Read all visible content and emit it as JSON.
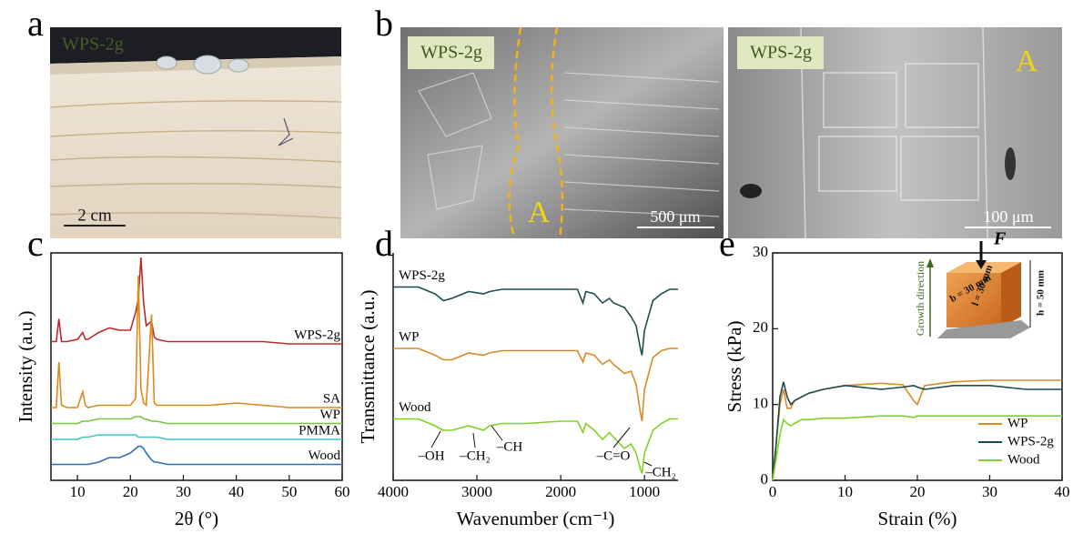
{
  "panel_labels": [
    "a",
    "b",
    "c",
    "d",
    "e"
  ],
  "photos": [
    {
      "label": "WPS-2g",
      "scale_bar": "2 cm"
    },
    {
      "label": "WPS-2g",
      "region": "A",
      "scale_bar": "500 μm"
    },
    {
      "label": "WPS-2g",
      "region": "A",
      "scale_bar": "100 μm"
    }
  ],
  "chart_data": [
    {
      "type": "line",
      "xlabel": "2θ (°)",
      "ylabel": "Intensity (a.u.)",
      "xlim": [
        5,
        60
      ],
      "xticks": [
        10,
        20,
        30,
        40,
        50,
        60
      ],
      "ylim": [
        0,
        100
      ],
      "x": [
        5,
        6,
        6.5,
        7,
        8,
        10,
        11,
        11.5,
        12,
        14,
        16,
        18,
        20,
        21,
        21.5,
        22,
        22.5,
        23,
        24,
        24.5,
        25,
        27,
        30,
        35,
        40,
        45,
        50,
        55,
        60
      ],
      "series": [
        {
          "name": "WPS-2g",
          "color": "#c0282e",
          "values": [
            61,
            61,
            71,
            61,
            61,
            62,
            65,
            62,
            62,
            65,
            67,
            66,
            66,
            74,
            80,
            98,
            78,
            68,
            70,
            63,
            62,
            61,
            61,
            61,
            61,
            61,
            60,
            60,
            60
          ]
        },
        {
          "name": "SA",
          "color": "#d98a1a",
          "values": [
            32,
            32,
            52,
            33,
            32,
            32,
            39,
            33,
            32,
            33,
            33,
            33,
            33,
            36,
            90,
            40,
            34,
            33,
            73,
            34,
            33,
            33,
            33,
            33,
            34,
            33,
            32,
            32,
            32
          ]
        },
        {
          "name": "WP",
          "color": "#7cc242",
          "values": [
            25,
            25,
            25,
            25,
            25,
            25,
            26,
            26,
            26,
            27,
            27,
            27,
            27,
            28,
            28,
            28,
            27,
            27,
            26,
            26,
            26,
            25,
            25,
            25,
            25,
            25,
            25,
            25,
            25
          ]
        },
        {
          "name": "PMMA",
          "color": "#3cc6c0",
          "values": [
            18,
            18,
            18,
            18,
            18,
            18,
            19,
            19,
            19,
            20,
            20,
            20,
            20,
            20,
            19,
            19,
            19,
            19,
            19,
            19,
            19,
            18,
            18,
            18,
            18,
            18,
            18,
            18,
            18
          ]
        },
        {
          "name": "Wood",
          "color": "#2a6db5",
          "values": [
            7,
            7,
            7,
            7,
            7,
            7,
            7,
            7,
            7,
            8,
            10,
            10,
            12,
            14,
            15,
            15,
            14,
            12,
            9,
            8,
            8,
            7,
            7,
            7,
            7,
            7,
            7,
            7,
            7
          ]
        }
      ]
    },
    {
      "type": "line",
      "xlabel": "Wavenumber (cm⁻¹)",
      "ylabel": "Transmittance (a.u.)",
      "xlim": [
        4000,
        600
      ],
      "xticks": [
        4000,
        3000,
        2000,
        1000
      ],
      "ylim": [
        0,
        100
      ],
      "x": [
        4000,
        3700,
        3500,
        3400,
        3300,
        3100,
        2920,
        2850,
        2700,
        2400,
        2000,
        1800,
        1735,
        1700,
        1600,
        1500,
        1420,
        1370,
        1240,
        1160,
        1100,
        1050,
        1030,
        1000,
        900,
        800,
        700,
        600
      ],
      "series": [
        {
          "name": "WPS-2g",
          "color": "#1e4d4f",
          "values": [
            85,
            85,
            82,
            79,
            80,
            83,
            82,
            83,
            84,
            84,
            84,
            84,
            78,
            83,
            82,
            78,
            80,
            78,
            76,
            72,
            68,
            58,
            55,
            66,
            79,
            82,
            84,
            84
          ]
        },
        {
          "name": "WP",
          "color": "#d98a26",
          "values": [
            58,
            58,
            55,
            53,
            53,
            56,
            55,
            56,
            57,
            57,
            57,
            57,
            52,
            56,
            55,
            51,
            53,
            51,
            47,
            48,
            42,
            30,
            26,
            40,
            54,
            57,
            58,
            58
          ]
        },
        {
          "name": "Wood",
          "color": "#7ed321",
          "values": [
            27,
            27,
            24,
            22,
            22,
            24,
            22,
            24,
            25,
            25,
            26,
            26,
            21,
            25,
            22,
            18,
            21,
            19,
            14,
            16,
            12,
            5,
            3,
            12,
            22,
            25,
            27,
            27
          ]
        }
      ],
      "annotations": [
        "–OH",
        "–CH₂",
        "–CH",
        "–C=O",
        "–CH₂"
      ]
    },
    {
      "type": "line",
      "xlabel": "Strain (%)",
      "ylabel": "Stress (kPa)",
      "xlim": [
        0,
        40
      ],
      "xticks": [
        0,
        10,
        20,
        30,
        40
      ],
      "ylim": [
        0,
        30
      ],
      "yticks": [
        0,
        10,
        20,
        30
      ],
      "legend": "lower right",
      "x": [
        0,
        0.5,
        1,
        1.5,
        2,
        2.5,
        3,
        4,
        5,
        7,
        10,
        15,
        18,
        19.5,
        20,
        21,
        25,
        30,
        35,
        40
      ],
      "series": [
        {
          "name": "WP",
          "color": "#d98a26",
          "values": [
            0,
            5,
            10,
            12,
            9.5,
            9.5,
            10.5,
            11,
            11.5,
            12,
            12.5,
            12.8,
            12.6,
            10.5,
            10,
            12.5,
            13,
            13.2,
            13.2,
            13.2
          ]
        },
        {
          "name": "WPS-2g",
          "color": "#1e4a4a",
          "values": [
            0,
            5,
            11,
            13,
            11,
            10,
            10.5,
            11,
            11.5,
            12,
            12.5,
            12,
            12.3,
            12.5,
            12.3,
            12,
            12.5,
            12.5,
            12,
            12
          ]
        },
        {
          "name": "Wood",
          "color": "#7ed321",
          "values": [
            0,
            3,
            6,
            8,
            7.5,
            7.2,
            7.5,
            8,
            8,
            8.2,
            8.2,
            8.5,
            8.5,
            8.3,
            8.5,
            8.5,
            8.5,
            8.5,
            8.5,
            8.5
          ]
        }
      ],
      "inset": {
        "force": "F",
        "direction": "Growth direction",
        "b": "b = 30 mm",
        "l": "l = 30 mm",
        "h": "h = 50 mm"
      }
    }
  ]
}
